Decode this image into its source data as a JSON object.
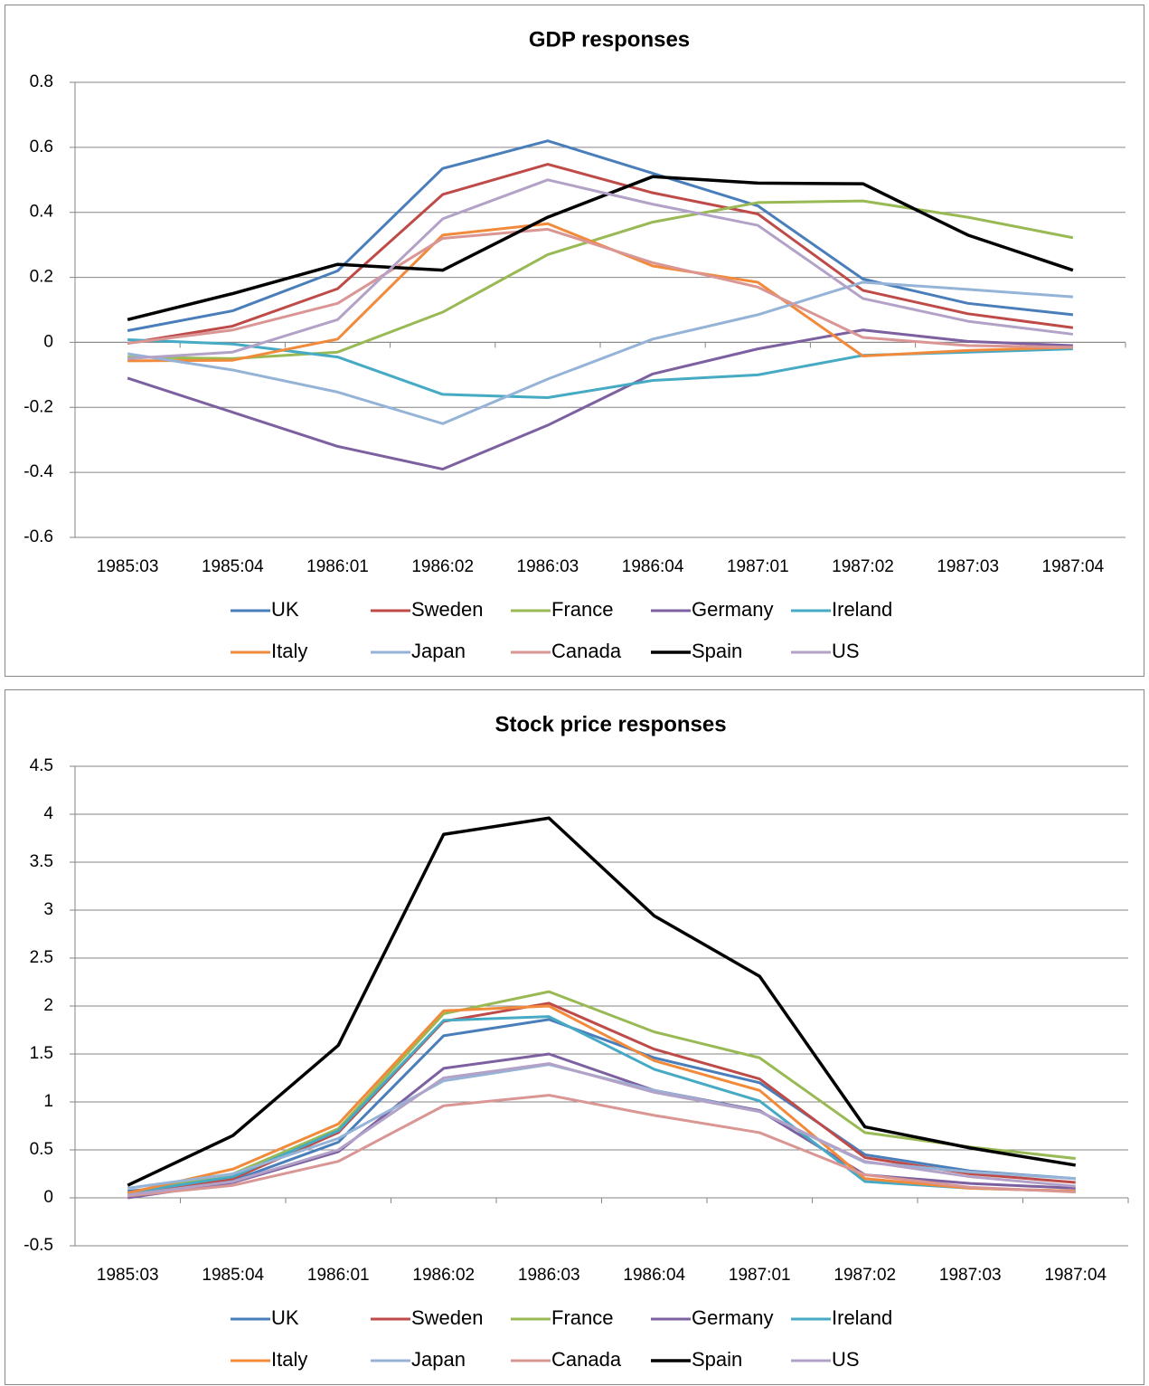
{
  "chart_data": [
    {
      "type": "line",
      "title": "GDP responses",
      "categories": [
        "1985:03",
        "1985:04",
        "1986:01",
        "1986:02",
        "1986:03",
        "1986:04",
        "1987:01",
        "1987:02",
        "1987:03",
        "1987:04"
      ],
      "ylim": [
        -0.6,
        0.8
      ],
      "yticks": [
        -0.6,
        -0.4,
        -0.2,
        0,
        0.2,
        0.4,
        0.6,
        0.8
      ],
      "grid": true,
      "legend": "bottom",
      "series": [
        {
          "name": "UK",
          "color": "#4a7ebb",
          "values": [
            0.036,
            0.097,
            0.22,
            0.535,
            0.62,
            0.52,
            0.42,
            0.195,
            0.12,
            0.085
          ]
        },
        {
          "name": "Sweden",
          "color": "#be4b48",
          "values": [
            -0.003,
            0.05,
            0.165,
            0.455,
            0.548,
            0.46,
            0.395,
            0.16,
            0.088,
            0.045
          ]
        },
        {
          "name": "France",
          "color": "#98b954",
          "values": [
            -0.045,
            -0.05,
            -0.03,
            0.093,
            0.27,
            0.37,
            0.43,
            0.435,
            0.385,
            0.322
          ]
        },
        {
          "name": "Germany",
          "color": "#7d60a0",
          "values": [
            -0.11,
            -0.215,
            -0.32,
            -0.39,
            -0.255,
            -0.097,
            -0.02,
            0.038,
            0.003,
            -0.01
          ]
        },
        {
          "name": "Ireland",
          "color": "#46aac5",
          "values": [
            0.008,
            -0.005,
            -0.045,
            -0.16,
            -0.17,
            -0.117,
            -0.1,
            -0.04,
            -0.03,
            -0.02
          ]
        },
        {
          "name": "Italy",
          "color": "#f18a3a",
          "values": [
            -0.057,
            -0.055,
            0.01,
            0.33,
            0.365,
            0.235,
            0.185,
            -0.042,
            -0.025,
            -0.015
          ]
        },
        {
          "name": "Japan",
          "color": "#95b3d7",
          "values": [
            -0.035,
            -0.085,
            -0.153,
            -0.25,
            -0.113,
            0.01,
            0.085,
            0.185,
            0.163,
            0.14
          ]
        },
        {
          "name": "Canada",
          "color": "#d99694",
          "values": [
            -0.003,
            0.038,
            0.12,
            0.32,
            0.348,
            0.245,
            0.17,
            0.015,
            -0.01,
            -0.015
          ]
        },
        {
          "name": "Spain",
          "color": "#000000",
          "values": [
            0.07,
            0.15,
            0.24,
            0.222,
            0.385,
            0.51,
            0.49,
            0.488,
            0.33,
            0.222
          ]
        },
        {
          "name": "US",
          "color": "#b3a2c7",
          "values": [
            -0.05,
            -0.03,
            0.07,
            0.38,
            0.5,
            0.425,
            0.36,
            0.135,
            0.065,
            0.025
          ]
        }
      ]
    },
    {
      "type": "line",
      "title": "Stock price responses",
      "categories": [
        "1985:03",
        "1985:04",
        "1986:01",
        "1986:02",
        "1986:03",
        "1986:04",
        "1987:01",
        "1987:02",
        "1987:03",
        "1987:04"
      ],
      "ylim": [
        -0.5,
        4.5
      ],
      "yticks": [
        -0.5,
        0,
        0.5,
        1,
        1.5,
        2,
        2.5,
        3,
        3.5,
        4,
        4.5
      ],
      "grid": true,
      "legend": "bottom",
      "series": [
        {
          "name": "UK",
          "color": "#4a7ebb",
          "values": [
            0.07,
            0.18,
            0.58,
            1.69,
            1.86,
            1.46,
            1.2,
            0.45,
            0.28,
            0.2
          ]
        },
        {
          "name": "Sweden",
          "color": "#be4b48",
          "values": [
            0.03,
            0.2,
            0.68,
            1.84,
            2.03,
            1.55,
            1.24,
            0.42,
            0.25,
            0.16
          ]
        },
        {
          "name": "France",
          "color": "#98b954",
          "values": [
            0.05,
            0.25,
            0.72,
            1.92,
            2.15,
            1.73,
            1.46,
            0.68,
            0.53,
            0.41
          ]
        },
        {
          "name": "Germany",
          "color": "#7d60a0",
          "values": [
            0.0,
            0.16,
            0.48,
            1.35,
            1.5,
            1.12,
            0.91,
            0.24,
            0.15,
            0.1
          ]
        },
        {
          "name": "Ireland",
          "color": "#46aac5",
          "values": [
            0.05,
            0.22,
            0.7,
            1.85,
            1.89,
            1.34,
            1.01,
            0.17,
            0.1,
            0.07
          ]
        },
        {
          "name": "Italy",
          "color": "#f18a3a",
          "values": [
            0.05,
            0.3,
            0.77,
            1.95,
            2.0,
            1.43,
            1.12,
            0.2,
            0.1,
            0.07
          ]
        },
        {
          "name": "Japan",
          "color": "#95b3d7",
          "values": [
            0.1,
            0.25,
            0.62,
            1.22,
            1.39,
            1.12,
            0.9,
            0.37,
            0.27,
            0.2
          ]
        },
        {
          "name": "Canada",
          "color": "#d99694",
          "values": [
            0.02,
            0.13,
            0.38,
            0.96,
            1.07,
            0.86,
            0.68,
            0.24,
            0.11,
            0.06
          ]
        },
        {
          "name": "Spain",
          "color": "#000000",
          "values": [
            0.13,
            0.65,
            1.59,
            3.79,
            3.96,
            2.94,
            2.31,
            0.74,
            0.52,
            0.34
          ]
        },
        {
          "name": "US",
          "color": "#b3a2c7",
          "values": [
            0.03,
            0.17,
            0.5,
            1.25,
            1.4,
            1.1,
            0.9,
            0.38,
            0.22,
            0.12
          ]
        }
      ]
    }
  ]
}
